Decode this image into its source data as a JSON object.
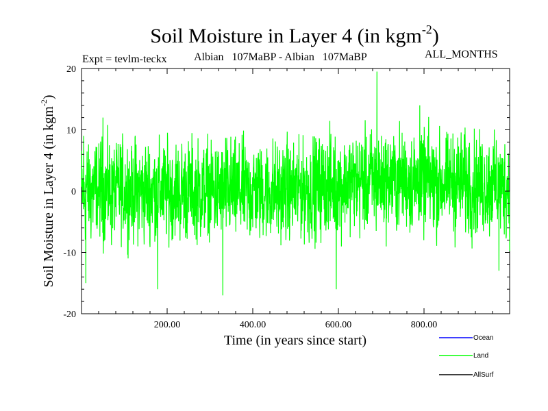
{
  "chart_data": {
    "type": "line",
    "title": "Soil Moisture in Layer 4 (in kgm",
    "title_superscript": "-2",
    "title_close": ")",
    "subtitle_left": "Expt = tevlm-teckx",
    "subtitle_center": "Albian   107MaBP - Albian   107MaBP",
    "subtitle_right": "ALL_MONTHS",
    "xlabel": "Time (in years since start)",
    "ylabel": "Soil Moisture in Layer 4 (in kgm",
    "ylabel_superscript": "-2",
    "ylabel_close": ")",
    "xlim": [
      0,
      1000
    ],
    "ylim": [
      -20,
      20
    ],
    "x_ticks": [
      {
        "value": 200,
        "label": "200.00"
      },
      {
        "value": 400,
        "label": "400.00"
      },
      {
        "value": 600,
        "label": "600.00"
      },
      {
        "value": 800,
        "label": "800.00"
      }
    ],
    "y_ticks": [
      {
        "value": 20,
        "label": "20"
      },
      {
        "value": 10,
        "label": "10"
      },
      {
        "value": 0,
        "label": "0"
      },
      {
        "value": -10,
        "label": "-10"
      },
      {
        "value": -20,
        "label": "-20"
      }
    ],
    "legend_position": "bottom-right",
    "series": [
      {
        "name": "Ocean",
        "color": "#0000ff",
        "values": []
      },
      {
        "name": "Land",
        "color": "#00ff00",
        "description": "noisy monthly time series oscillating roughly between -17 and +19 over 1000 years",
        "extremes": [
          {
            "x": 5,
            "y": 9
          },
          {
            "x": 10,
            "y": -15
          },
          {
            "x": 50,
            "y": 12
          },
          {
            "x": 178,
            "y": -16
          },
          {
            "x": 330,
            "y": -17
          },
          {
            "x": 595,
            "y": -16
          },
          {
            "x": 690,
            "y": 19.5
          },
          {
            "x": 790,
            "y": 14
          },
          {
            "x": 975,
            "y": -13
          }
        ]
      },
      {
        "name": "AllSurf",
        "color": "#000000",
        "values": []
      }
    ]
  }
}
